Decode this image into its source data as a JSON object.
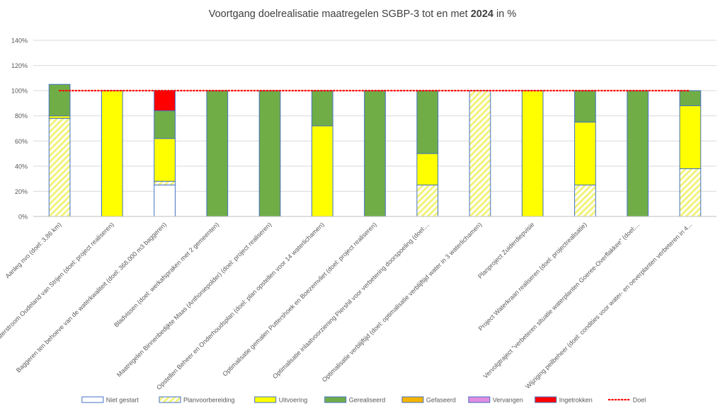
{
  "chart_data": {
    "type": "bar",
    "stacked": true,
    "title_parts": [
      {
        "text": "Voortgang doelrealisatie maatregelen SGBP-3 tot en met ",
        "bold": false
      },
      {
        "text": "2024",
        "bold": true
      },
      {
        "text": " in %",
        "bold": false
      }
    ],
    "ylim": [
      0,
      140
    ],
    "yticks": [
      0,
      20,
      40,
      60,
      80,
      100,
      120,
      140
    ],
    "ytick_labels": [
      "0%",
      "20%",
      "40%",
      "60%",
      "80%",
      "100%",
      "120%",
      "140%"
    ],
    "grid": true,
    "legend_position": "bottom",
    "categories": [
      "Aanleg nvo (doel: 3,86 km)",
      "Beekherstel Oude Maas/Waterstroom Oudeland van Strijen (doel: project realiseren)",
      "Baggeren ten behoeve van de waterkwaliteit (doel: 368.000 m3 baggeren)",
      "Bladvissen (doel: werkafspraken met 2 gemeenten)",
      "Maatregelen Binnenbedijkte Maas (Anthoniepolder) (doel: project realiseren)",
      "Opstellen Beheer en Onderhoudsplan (doel: plan opstellen voor 14 waterlichamen)",
      "Optimalisatie gemalen Puttershoek en Boezemvliet (doel: project realiseren)",
      "Optimalisatie inlaatvoorziening Piershil voor verbetering doorspoeling (doel:...",
      "Optimalisatie verblijftijd (doel: optimalisatie verblijftijd water in 3 waterlichamen)",
      "Planproject Zuiderdiepvisie",
      "Project Waterkraan realiseren (doel: projectrealisatie)",
      "Vervolgtraject \"verbeteren situatie waterplanten Goeree-Overflakkee\" (doel:...",
      "Wijziging peilbeheer (doel: condities voor water- en oeverplanten verbeteren in 4..."
    ],
    "series": [
      {
        "name": "Niet gestart",
        "key": "niet",
        "color": "#ffffff",
        "stroke": "#4472c4",
        "values": [
          0,
          0,
          25,
          0,
          0,
          0,
          0,
          0,
          0,
          0,
          0,
          0,
          0
        ]
      },
      {
        "name": "Planvoorbereiding",
        "key": "plan",
        "color": "#ffff99",
        "stroke": "#4472c4",
        "pattern": "hatch",
        "values": [
          78,
          0,
          3,
          0,
          0,
          0,
          0,
          25,
          100,
          0,
          25,
          0,
          38
        ]
      },
      {
        "name": "Uitvoering",
        "key": "uitv",
        "color": "#ffff00",
        "stroke": "#4472c4",
        "values": [
          2,
          100,
          34,
          0,
          0,
          72,
          0,
          25,
          0,
          100,
          50,
          0,
          50
        ]
      },
      {
        "name": "Gerealiseerd",
        "key": "geree",
        "color": "#70ad47",
        "stroke": "#4472c4",
        "values": [
          25,
          0,
          22,
          100,
          100,
          28,
          100,
          50,
          0,
          0,
          25,
          100,
          12
        ]
      },
      {
        "name": "Gefaseerd",
        "key": "gefas",
        "color": "#f4b400",
        "stroke": "#4472c4",
        "values": [
          0,
          0,
          0,
          0,
          0,
          0,
          0,
          0,
          0,
          0,
          0,
          0,
          0
        ]
      },
      {
        "name": "Vervangen",
        "key": "verv",
        "color": "#e08ce0",
        "stroke": "#4472c4",
        "values": [
          0,
          0,
          0,
          0,
          0,
          0,
          0,
          0,
          0,
          0,
          0,
          0,
          0
        ]
      },
      {
        "name": "Ingetrokken",
        "key": "inge",
        "color": "#ff0000",
        "stroke": "#4472c4",
        "values": [
          0,
          0,
          16,
          0,
          0,
          0,
          0,
          0,
          0,
          0,
          0,
          0,
          0
        ]
      }
    ],
    "target_line": {
      "name": "Doel",
      "value": 100,
      "color": "#ff0000",
      "style": "dotted"
    }
  }
}
